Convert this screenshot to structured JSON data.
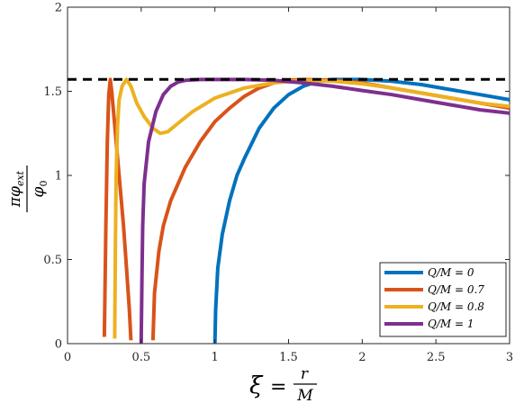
{
  "chart_data": {
    "type": "line",
    "xlabel": "ξ = r/M",
    "ylabel": "πφ_ext/φ_0",
    "xlim": [
      0,
      3
    ],
    "ylim": [
      0,
      2
    ],
    "x_ticks": [
      "0",
      "0.5",
      "1",
      "1.5",
      "2",
      "2.5",
      "3"
    ],
    "y_ticks": [
      "0",
      "0.5",
      "1",
      "1.5",
      "2"
    ],
    "grid": false,
    "legend_position": "bottom-right",
    "reference_line": {
      "y": 1.5708,
      "style": "dashed",
      "color": "#000000"
    },
    "series": [
      {
        "name": "Q/M = 0",
        "color": "#0072BD",
        "segments": [
          [
            [
              1.0,
              0.0
            ],
            [
              1.005,
              0.2
            ],
            [
              1.02,
              0.45
            ],
            [
              1.05,
              0.65
            ],
            [
              1.1,
              0.85
            ],
            [
              1.15,
              1.0
            ],
            [
              1.2,
              1.1
            ],
            [
              1.3,
              1.28
            ],
            [
              1.4,
              1.4
            ],
            [
              1.5,
              1.48
            ],
            [
              1.6,
              1.53
            ],
            [
              1.7,
              1.56
            ],
            [
              1.8,
              1.57
            ],
            [
              1.9,
              1.57
            ],
            [
              2.0,
              1.57
            ],
            [
              2.2,
              1.56
            ],
            [
              2.4,
              1.54
            ],
            [
              2.6,
              1.51
            ],
            [
              2.8,
              1.48
            ],
            [
              3.0,
              1.45
            ]
          ]
        ]
      },
      {
        "name": "Q/M = 0.7",
        "color": "#D95319",
        "segments": [
          [
            [
              0.25,
              0.04
            ],
            [
              0.26,
              0.7
            ],
            [
              0.27,
              1.2
            ],
            [
              0.28,
              1.48
            ],
            [
              0.29,
              1.57
            ],
            [
              0.3,
              1.5
            ],
            [
              0.32,
              1.3
            ],
            [
              0.35,
              1.0
            ],
            [
              0.38,
              0.7
            ],
            [
              0.4,
              0.45
            ],
            [
              0.42,
              0.2
            ],
            [
              0.43,
              0.02
            ]
          ],
          [
            [
              0.58,
              0.02
            ],
            [
              0.59,
              0.3
            ],
            [
              0.62,
              0.55
            ],
            [
              0.65,
              0.7
            ],
            [
              0.7,
              0.85
            ],
            [
              0.8,
              1.05
            ],
            [
              0.9,
              1.2
            ],
            [
              1.0,
              1.32
            ],
            [
              1.1,
              1.4
            ],
            [
              1.2,
              1.47
            ],
            [
              1.3,
              1.52
            ],
            [
              1.4,
              1.55
            ],
            [
              1.5,
              1.565
            ],
            [
              1.6,
              1.57
            ],
            [
              1.8,
              1.565
            ],
            [
              2.0,
              1.55
            ],
            [
              2.2,
              1.52
            ],
            [
              2.4,
              1.49
            ],
            [
              2.6,
              1.46
            ],
            [
              2.8,
              1.43
            ],
            [
              3.0,
              1.4
            ]
          ]
        ]
      },
      {
        "name": "Q/M = 0.8",
        "color": "#EDB120",
        "segments": [
          [
            [
              0.32,
              0.03
            ],
            [
              0.325,
              0.6
            ],
            [
              0.33,
              1.0
            ],
            [
              0.34,
              1.3
            ],
            [
              0.35,
              1.45
            ],
            [
              0.37,
              1.53
            ],
            [
              0.4,
              1.57
            ],
            [
              0.43,
              1.53
            ],
            [
              0.47,
              1.43
            ],
            [
              0.52,
              1.35
            ],
            [
              0.58,
              1.28
            ],
            [
              0.63,
              1.25
            ],
            [
              0.68,
              1.26
            ],
            [
              0.75,
              1.31
            ],
            [
              0.85,
              1.38
            ],
            [
              1.0,
              1.46
            ],
            [
              1.2,
              1.52
            ],
            [
              1.4,
              1.55
            ],
            [
              1.6,
              1.565
            ],
            [
              1.8,
              1.56
            ],
            [
              2.0,
              1.545
            ],
            [
              2.2,
              1.52
            ],
            [
              2.4,
              1.49
            ],
            [
              2.6,
              1.46
            ],
            [
              2.8,
              1.43
            ],
            [
              3.0,
              1.41
            ]
          ]
        ]
      },
      {
        "name": "Q/M = 1",
        "color": "#7E2F8E",
        "segments": [
          [
            [
              0.5,
              0.0
            ],
            [
              0.505,
              0.4
            ],
            [
              0.51,
              0.7
            ],
            [
              0.52,
              0.95
            ],
            [
              0.55,
              1.2
            ],
            [
              0.6,
              1.38
            ],
            [
              0.65,
              1.48
            ],
            [
              0.7,
              1.53
            ],
            [
              0.75,
              1.555
            ],
            [
              0.8,
              1.565
            ],
            [
              0.9,
              1.57
            ],
            [
              1.0,
              1.57
            ],
            [
              1.2,
              1.57
            ],
            [
              1.4,
              1.565
            ],
            [
              1.6,
              1.55
            ],
            [
              1.8,
              1.53
            ],
            [
              2.0,
              1.505
            ],
            [
              2.2,
              1.48
            ],
            [
              2.4,
              1.45
            ],
            [
              2.6,
              1.42
            ],
            [
              2.8,
              1.39
            ],
            [
              3.0,
              1.37
            ]
          ]
        ]
      }
    ]
  },
  "legend": {
    "entries": [
      "Q/M = 0",
      "Q/M = 0.7",
      "Q/M = 0.8",
      "Q/M = 1"
    ]
  },
  "labels": {
    "x_axis": "ξ = r/M",
    "y_axis": "πφ_ext/φ_0"
  }
}
